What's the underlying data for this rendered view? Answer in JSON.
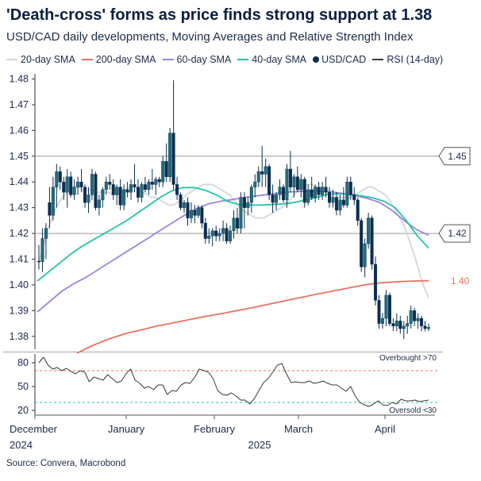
{
  "title": "'Death-cross' forms as price finds strong support at 1.38",
  "subtitle": "USD/CAD daily developments, Moving Averages and Relative Strength Index",
  "source": "Source: Convera, Macrobond",
  "legend": [
    {
      "label": "20-day SMA",
      "color": "#d6d6d6",
      "kind": "line"
    },
    {
      "label": "200-day SMA",
      "color": "#e8735f",
      "kind": "line"
    },
    {
      "label": "60-day SMA",
      "color": "#9b85e0",
      "kind": "line"
    },
    {
      "label": "40-day SMA",
      "color": "#22c4a5",
      "kind": "line"
    },
    {
      "label": "USD/CAD",
      "color": "#0b2d52",
      "kind": "candle"
    },
    {
      "label": "RSI (14-day)",
      "color": "#3a3a3a",
      "kind": "line"
    }
  ],
  "chart_data": [
    {
      "type": "line",
      "title": "USD/CAD daily developments, Moving Averages",
      "x_tick_labels": [
        {
          "month": "December",
          "year": "2024"
        },
        {
          "month": "January",
          "year": ""
        },
        {
          "month": "February",
          "year": "2025"
        },
        {
          "month": "March",
          "year": ""
        },
        {
          "month": "April",
          "year": ""
        }
      ],
      "ylim": [
        1.375,
        1.482
      ],
      "y_ticks": [
        1.38,
        1.39,
        1.4,
        1.41,
        1.42,
        1.43,
        1.44,
        1.45,
        1.46,
        1.47,
        1.48
      ],
      "grid": false,
      "legend_position": "top",
      "reference_lines": [
        1.45,
        1.42
      ],
      "annotations": [
        {
          "label": "1.45",
          "value": 1.45,
          "style": "box"
        },
        {
          "label": "1.42",
          "value": 1.42,
          "style": "box"
        },
        {
          "label": "1.40",
          "value": 1.4015,
          "style": "text",
          "color": "#e8735f"
        }
      ],
      "candles_ohlc": [
        [
          1.4092,
          1.4155,
          1.406,
          1.409
        ],
        [
          1.409,
          1.422,
          1.405,
          1.418
        ],
        [
          1.418,
          1.424,
          1.41,
          1.422
        ],
        [
          1.432,
          1.438,
          1.422,
          1.427
        ],
        [
          1.427,
          1.442,
          1.425,
          1.438
        ],
        [
          1.438,
          1.447,
          1.43,
          1.444
        ],
        [
          1.444,
          1.446,
          1.437,
          1.44
        ],
        [
          1.44,
          1.442,
          1.433,
          1.436
        ],
        [
          1.436,
          1.445,
          1.43,
          1.442
        ],
        [
          1.442,
          1.444,
          1.434,
          1.435
        ],
        [
          1.435,
          1.441,
          1.433,
          1.438
        ],
        [
          1.438,
          1.442,
          1.435,
          1.44
        ],
        [
          1.44,
          1.445,
          1.436,
          1.438
        ],
        [
          1.438,
          1.439,
          1.43,
          1.432
        ],
        [
          1.432,
          1.438,
          1.428,
          1.435
        ],
        [
          1.435,
          1.445,
          1.433,
          1.443
        ],
        [
          1.443,
          1.444,
          1.429,
          1.43
        ],
        [
          1.43,
          1.435,
          1.427,
          1.433
        ],
        [
          1.433,
          1.438,
          1.43,
          1.437
        ],
        [
          1.437,
          1.442,
          1.435,
          1.44
        ],
        [
          1.44,
          1.443,
          1.437,
          1.439
        ],
        [
          1.439,
          1.441,
          1.433,
          1.435
        ],
        [
          1.435,
          1.439,
          1.431,
          1.438
        ],
        [
          1.438,
          1.441,
          1.429,
          1.431
        ],
        [
          1.431,
          1.439,
          1.429,
          1.437
        ],
        [
          1.437,
          1.44,
          1.434,
          1.436
        ],
        [
          1.436,
          1.441,
          1.433,
          1.439
        ],
        [
          1.439,
          1.447,
          1.436,
          1.438
        ],
        [
          1.438,
          1.441,
          1.432,
          1.434
        ],
        [
          1.434,
          1.44,
          1.432,
          1.439
        ],
        [
          1.439,
          1.442,
          1.436,
          1.437
        ],
        [
          1.437,
          1.441,
          1.435,
          1.44
        ],
        [
          1.44,
          1.445,
          1.437,
          1.439
        ],
        [
          1.439,
          1.442,
          1.435,
          1.441
        ],
        [
          1.441,
          1.442,
          1.438,
          1.44
        ],
        [
          1.44,
          1.45,
          1.438,
          1.448
        ],
        [
          1.448,
          1.455,
          1.44,
          1.442
        ],
        [
          1.442,
          1.461,
          1.44,
          1.459
        ],
        [
          1.459,
          1.4795,
          1.437,
          1.439
        ],
        [
          1.439,
          1.442,
          1.433,
          1.435
        ],
        [
          1.435,
          1.436,
          1.429,
          1.43
        ],
        [
          1.43,
          1.433,
          1.428,
          1.432
        ],
        [
          1.432,
          1.434,
          1.423,
          1.426
        ],
        [
          1.426,
          1.432,
          1.424,
          1.429
        ],
        [
          1.429,
          1.431,
          1.424,
          1.427
        ],
        [
          1.427,
          1.431,
          1.426,
          1.43
        ],
        [
          1.43,
          1.431,
          1.422,
          1.424
        ],
        [
          1.424,
          1.426,
          1.416,
          1.418
        ],
        [
          1.418,
          1.422,
          1.416,
          1.419
        ],
        [
          1.419,
          1.422,
          1.415,
          1.421
        ],
        [
          1.421,
          1.423,
          1.417,
          1.419
        ],
        [
          1.419,
          1.422,
          1.417,
          1.42
        ],
        [
          1.42,
          1.425,
          1.417,
          1.422
        ],
        [
          1.422,
          1.424,
          1.416,
          1.417
        ],
        [
          1.417,
          1.423,
          1.416,
          1.421
        ],
        [
          1.421,
          1.429,
          1.418,
          1.426
        ],
        [
          1.426,
          1.43,
          1.42,
          1.422
        ],
        [
          1.422,
          1.436,
          1.42,
          1.434
        ],
        [
          1.434,
          1.436,
          1.422,
          1.43
        ],
        [
          1.43,
          1.434,
          1.427,
          1.432
        ],
        [
          1.432,
          1.439,
          1.428,
          1.438
        ],
        [
          1.438,
          1.443,
          1.434,
          1.44
        ],
        [
          1.44,
          1.446,
          1.438,
          1.444
        ],
        [
          1.444,
          1.454,
          1.438,
          1.443
        ],
        [
          1.443,
          1.449,
          1.438,
          1.446
        ],
        [
          1.446,
          1.447,
          1.433,
          1.435
        ],
        [
          1.435,
          1.439,
          1.428,
          1.432
        ],
        [
          1.432,
          1.436,
          1.429,
          1.435
        ],
        [
          1.435,
          1.441,
          1.433,
          1.438
        ],
        [
          1.438,
          1.439,
          1.432,
          1.433
        ],
        [
          1.433,
          1.447,
          1.43,
          1.445
        ],
        [
          1.445,
          1.452,
          1.436,
          1.438
        ],
        [
          1.438,
          1.443,
          1.434,
          1.442
        ],
        [
          1.442,
          1.446,
          1.436,
          1.437
        ],
        [
          1.437,
          1.443,
          1.434,
          1.441
        ],
        [
          1.441,
          1.442,
          1.43,
          1.432
        ],
        [
          1.432,
          1.439,
          1.431,
          1.437
        ],
        [
          1.437,
          1.442,
          1.433,
          1.434
        ],
        [
          1.434,
          1.439,
          1.432,
          1.438
        ],
        [
          1.438,
          1.44,
          1.433,
          1.435
        ],
        [
          1.435,
          1.44,
          1.433,
          1.438
        ],
        [
          1.438,
          1.442,
          1.434,
          1.436
        ],
        [
          1.436,
          1.438,
          1.43,
          1.432
        ],
        [
          1.432,
          1.437,
          1.43,
          1.434
        ],
        [
          1.434,
          1.436,
          1.427,
          1.429
        ],
        [
          1.429,
          1.435,
          1.427,
          1.433
        ],
        [
          1.433,
          1.438,
          1.43,
          1.431
        ],
        [
          1.431,
          1.442,
          1.43,
          1.44
        ],
        [
          1.44,
          1.442,
          1.433,
          1.435
        ],
        [
          1.435,
          1.438,
          1.431,
          1.433
        ],
        [
          1.433,
          1.434,
          1.423,
          1.425
        ],
        [
          1.425,
          1.426,
          1.405,
          1.407
        ],
        [
          1.407,
          1.418,
          1.403,
          1.416
        ],
        [
          1.416,
          1.428,
          1.414,
          1.426
        ],
        [
          1.426,
          1.427,
          1.406,
          1.408
        ],
        [
          1.408,
          1.411,
          1.392,
          1.394
        ],
        [
          1.394,
          1.396,
          1.383,
          1.385
        ],
        [
          1.385,
          1.389,
          1.383,
          1.387
        ],
        [
          1.387,
          1.398,
          1.384,
          1.396
        ],
        [
          1.396,
          1.397,
          1.384,
          1.385
        ],
        [
          1.385,
          1.387,
          1.382,
          1.384
        ],
        [
          1.384,
          1.389,
          1.382,
          1.386
        ],
        [
          1.386,
          1.388,
          1.381,
          1.383
        ],
        [
          1.383,
          1.386,
          1.379,
          1.384
        ],
        [
          1.384,
          1.388,
          1.381,
          1.385
        ],
        [
          1.385,
          1.392,
          1.383,
          1.39
        ],
        [
          1.39,
          1.391,
          1.384,
          1.386
        ],
        [
          1.386,
          1.389,
          1.383,
          1.387
        ],
        [
          1.387,
          1.388,
          1.382,
          1.384
        ],
        [
          1.384,
          1.386,
          1.382,
          1.383
        ],
        [
          1.383,
          1.385,
          1.382,
          1.3835
        ]
      ],
      "series": [
        {
          "name": "20-day SMA",
          "color": "#d6d6d6",
          "values": [
            1.409,
            1.415,
            1.421,
            1.426,
            1.43,
            1.433,
            1.435,
            1.437,
            1.438,
            1.438,
            1.437,
            1.437,
            1.437,
            1.436,
            1.436,
            1.436,
            1.436,
            1.435,
            1.435,
            1.436,
            1.437,
            1.438,
            1.438,
            1.437,
            1.436,
            1.435,
            1.434,
            1.434,
            1.433,
            1.432,
            1.431,
            1.431,
            1.432,
            1.433,
            1.435,
            1.436,
            1.437,
            1.438,
            1.439,
            1.439,
            1.439,
            1.438,
            1.437,
            1.436,
            1.435,
            1.433,
            1.431,
            1.429,
            1.428,
            1.427,
            1.426,
            1.426,
            1.426,
            1.427,
            1.428,
            1.429,
            1.43,
            1.431,
            1.433,
            1.435,
            1.437,
            1.438,
            1.439,
            1.439,
            1.438,
            1.437,
            1.436,
            1.435,
            1.434,
            1.434,
            1.434,
            1.434,
            1.434,
            1.435,
            1.436,
            1.437,
            1.438,
            1.438,
            1.437,
            1.436,
            1.435,
            1.433,
            1.43,
            1.427,
            1.424,
            1.42,
            1.415,
            1.41,
            1.404,
            1.399,
            1.395
          ]
        },
        {
          "name": "200-day SMA",
          "color": "#e8735f",
          "values": [
            1.3735,
            1.3765,
            1.379,
            1.381,
            1.3825,
            1.384,
            1.3852,
            1.3865,
            1.3877,
            1.3888,
            1.39,
            1.3912,
            1.3925,
            1.3938,
            1.3951,
            1.3964,
            1.3976,
            1.3988,
            1.4,
            1.4008,
            1.4012,
            1.4015,
            1.4016
          ]
        },
        {
          "name": "60-day SMA",
          "color": "#9b85e0",
          "values": [
            1.3895,
            1.3935,
            1.3975,
            1.4005,
            1.403,
            1.406,
            1.409,
            1.412,
            1.415,
            1.418,
            1.421,
            1.424,
            1.427,
            1.4295,
            1.4315,
            1.4325,
            1.4332,
            1.434,
            1.4346,
            1.4352,
            1.4358,
            1.4362,
            1.4364,
            1.4364,
            1.4362,
            1.4355,
            1.4347,
            1.4336,
            1.432,
            1.429,
            1.425,
            1.4215,
            1.4193
          ]
        },
        {
          "name": "40-day SMA",
          "color": "#22c4a5",
          "values": [
            1.4015,
            1.405,
            1.4085,
            1.412,
            1.415,
            1.4175,
            1.42,
            1.4225,
            1.425,
            1.428,
            1.431,
            1.434,
            1.4365,
            1.4378,
            1.4378,
            1.4368,
            1.435,
            1.4325,
            1.4312,
            1.431,
            1.431,
            1.4312,
            1.4315,
            1.432,
            1.433,
            1.434,
            1.4352,
            1.4354,
            1.4352,
            1.4346,
            1.4338,
            1.4325,
            1.43,
            1.425,
            1.419,
            1.4143
          ]
        }
      ]
    },
    {
      "type": "line",
      "title": "RSI (14-day)",
      "ylim": [
        14,
        89
      ],
      "y_ticks": [
        20,
        50,
        80
      ],
      "grid": false,
      "threshold_lines": [
        {
          "value": 70,
          "label": "Overbought >70",
          "color": "#e8735f"
        },
        {
          "value": 30,
          "label": "Oversold <30",
          "color": "#22c4a5"
        }
      ],
      "series": [
        {
          "name": "RSI (14-day)",
          "color": "#3a3a3a",
          "values": [
            80,
            87,
            77,
            72,
            74,
            70,
            73,
            69,
            66,
            70,
            68,
            56,
            62,
            60,
            58,
            65,
            60,
            55,
            57,
            66,
            72,
            58,
            54,
            48,
            50,
            46,
            52,
            52,
            40,
            45,
            44,
            52,
            55,
            54,
            62,
            72,
            70,
            68,
            60,
            45,
            40,
            39,
            42,
            38,
            33,
            33,
            28,
            35,
            45,
            55,
            60,
            68,
            77,
            79,
            66,
            55,
            56,
            55,
            55,
            57,
            54,
            55,
            57,
            54,
            52,
            52,
            48,
            44,
            50,
            38,
            30,
            27,
            25,
            28,
            32,
            27,
            26,
            30,
            28,
            34,
            32,
            32,
            33,
            31,
            32,
            33
          ]
        }
      ]
    }
  ]
}
